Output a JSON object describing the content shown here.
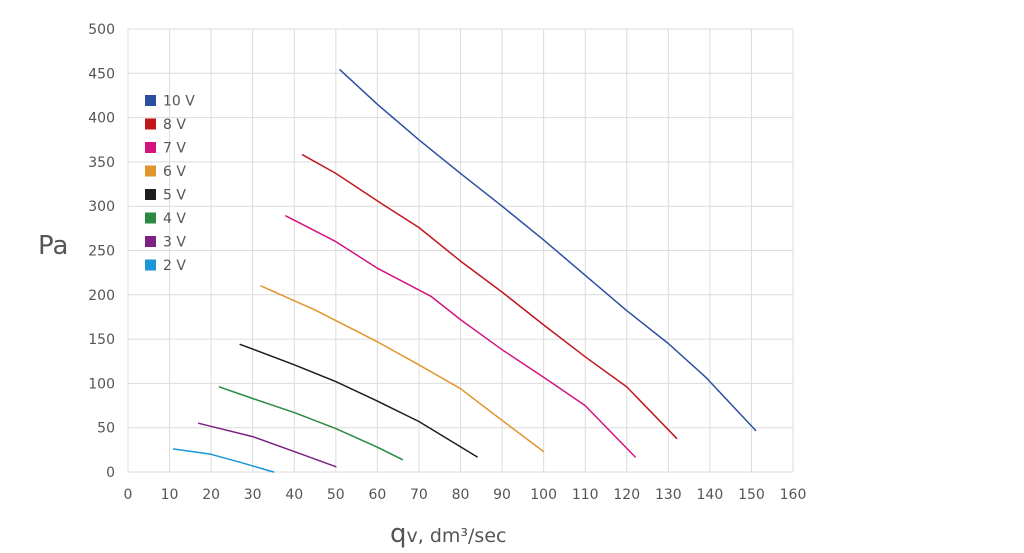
{
  "chart_data": {
    "type": "line",
    "xlabel_main": "q",
    "xlabel_rest": "v, dm³/sec",
    "ylabel": "Pa",
    "xlim": [
      0,
      160
    ],
    "ylim": [
      0,
      500
    ],
    "x_ticks": [
      "0",
      "10",
      "20",
      "30",
      "40",
      "50",
      "60",
      "70",
      "80",
      "90",
      "100",
      "110",
      "120",
      "130",
      "140",
      "150",
      "160"
    ],
    "y_ticks": [
      "0",
      "50",
      "100",
      "150",
      "200",
      "250",
      "300",
      "350",
      "400",
      "450",
      "500"
    ],
    "grid": true,
    "legend_position": "top-left",
    "series": [
      {
        "name": "10 V",
        "color": "#2b4fa0",
        "points": [
          [
            51,
            454
          ],
          [
            60,
            415
          ],
          [
            70,
            375
          ],
          [
            80,
            337
          ],
          [
            90,
            300
          ],
          [
            100,
            262
          ],
          [
            110,
            222
          ],
          [
            120,
            182
          ],
          [
            130,
            145
          ],
          [
            139,
            107
          ],
          [
            151,
            47
          ]
        ]
      },
      {
        "name": "8 V",
        "color": "#c0171d",
        "points": [
          [
            42,
            358
          ],
          [
            50,
            337
          ],
          [
            60,
            306
          ],
          [
            70,
            276
          ],
          [
            80,
            238
          ],
          [
            90,
            203
          ],
          [
            100,
            166
          ],
          [
            110,
            130
          ],
          [
            120,
            96
          ],
          [
            132,
            38
          ]
        ]
      },
      {
        "name": "7 V",
        "color": "#d4147f",
        "points": [
          [
            38,
            289
          ],
          [
            50,
            260
          ],
          [
            60,
            230
          ],
          [
            73,
            198
          ],
          [
            80,
            172
          ],
          [
            90,
            138
          ],
          [
            100,
            107
          ],
          [
            110,
            75
          ],
          [
            122,
            17
          ]
        ]
      },
      {
        "name": "6 V",
        "color": "#e0962c",
        "points": [
          [
            32,
            210
          ],
          [
            45,
            183
          ],
          [
            60,
            147
          ],
          [
            70,
            121
          ],
          [
            80,
            94
          ],
          [
            87,
            69
          ],
          [
            100,
            23
          ]
        ]
      },
      {
        "name": "5 V",
        "color": "#1e1e1e",
        "points": [
          [
            27,
            144
          ],
          [
            40,
            121
          ],
          [
            50,
            102
          ],
          [
            60,
            80
          ],
          [
            70,
            57
          ],
          [
            84,
            17
          ]
        ]
      },
      {
        "name": "4 V",
        "color": "#2a8a44",
        "points": [
          [
            22,
            96
          ],
          [
            30,
            83
          ],
          [
            40,
            67
          ],
          [
            50,
            49
          ],
          [
            60,
            28
          ],
          [
            66,
            14
          ]
        ]
      },
      {
        "name": "3 V",
        "color": "#7b2382",
        "points": [
          [
            17,
            55
          ],
          [
            30,
            40
          ],
          [
            40,
            23
          ],
          [
            50,
            6
          ]
        ]
      },
      {
        "name": "2 V",
        "color": "#1a96d6",
        "points": [
          [
            11,
            26
          ],
          [
            20,
            20
          ],
          [
            27,
            11
          ],
          [
            35,
            0
          ]
        ]
      }
    ]
  }
}
